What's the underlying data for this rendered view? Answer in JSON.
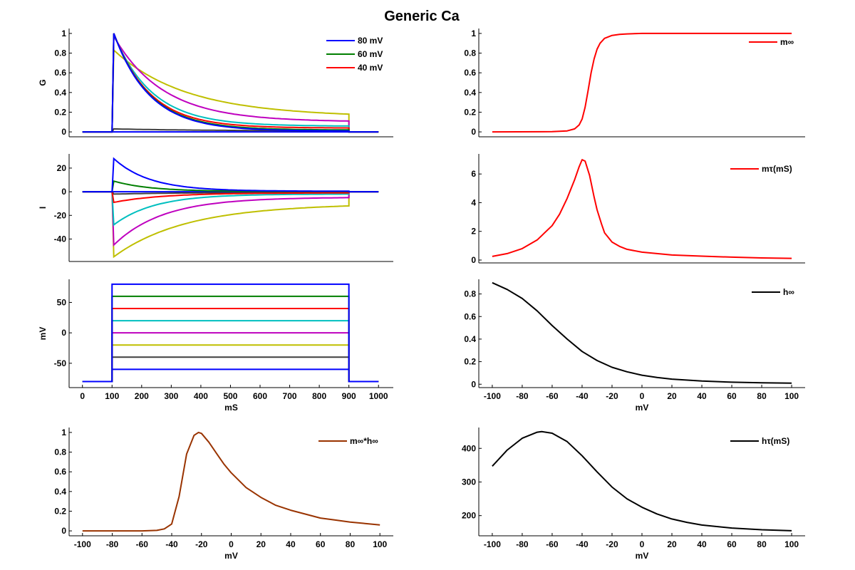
{
  "figure": {
    "title": "Generic Ca"
  },
  "chart_data": [
    {
      "id": "conductance",
      "type": "line",
      "title": "",
      "xlabel": "",
      "ylabel": "G",
      "xlim": [
        -45,
        1050
      ],
      "ylim": [
        -0.05,
        1.05
      ],
      "yticks": [
        0,
        0.2,
        0.4,
        0.6,
        0.8,
        1
      ],
      "ytick_labels": [
        "0",
        "0.2",
        "0.4",
        "0.6",
        "0.8",
        "1"
      ],
      "xticks": [],
      "legend": {
        "position": "top-right",
        "entries": [
          "80 mV",
          "60 mV",
          "40 mV"
        ]
      },
      "series": [
        {
          "name": "80 mV",
          "color": "#0000ff",
          "step_mV": 80,
          "peak": 1.0,
          "end": 0.01,
          "kind": "decay"
        },
        {
          "name": "60 mV",
          "color": "#007f00",
          "step_mV": 60,
          "peak": 1.0,
          "end": 0.02,
          "kind": "decay"
        },
        {
          "name": "40 mV",
          "color": "#ff0000",
          "step_mV": 40,
          "peak": 1.0,
          "end": 0.04,
          "kind": "decay"
        },
        {
          "name": "20 mV",
          "color": "#00bfbf",
          "step_mV": 20,
          "peak": 0.99,
          "end": 0.06,
          "kind": "decay"
        },
        {
          "name": "0 mV",
          "color": "#bf00bf",
          "step_mV": 0,
          "peak": 0.97,
          "end": 0.11,
          "kind": "decay"
        },
        {
          "name": "-20 mV",
          "color": "#bfbf00",
          "step_mV": -20,
          "peak": 0.83,
          "end": 0.18,
          "kind": "decay"
        },
        {
          "name": "-40 mV",
          "color": "#3f3f3f",
          "step_mV": -40,
          "peak": 0.03,
          "end": 0.01,
          "kind": "decay"
        },
        {
          "name": "-60 mV",
          "color": "#0000ff",
          "step_mV": -60,
          "peak": 0.0,
          "end": 0.0,
          "kind": "flat"
        }
      ],
      "step_on_ms": 100,
      "step_off_ms": 900,
      "t_range_ms": [
        0,
        1000
      ]
    },
    {
      "id": "current",
      "type": "line",
      "xlabel": "",
      "ylabel": "I",
      "xlim": [
        -45,
        1050
      ],
      "ylim": [
        -59,
        32
      ],
      "yticks": [
        -40,
        -20,
        0,
        20
      ],
      "ytick_labels": [
        "-40",
        "-20",
        "0",
        "20"
      ],
      "xticks": [],
      "series": [
        {
          "name": "80 mV",
          "color": "#0000ff",
          "peak": 28,
          "end": 0.5
        },
        {
          "name": "60 mV",
          "color": "#007f00",
          "peak": 9,
          "end": 0.3
        },
        {
          "name": "40 mV",
          "color": "#ff0000",
          "peak": -9,
          "end": -1
        },
        {
          "name": "20 mV",
          "color": "#00bfbf",
          "peak": -28,
          "end": -2
        },
        {
          "name": "0 mV",
          "color": "#bf00bf",
          "peak": -45,
          "end": -5
        },
        {
          "name": "-20 mV",
          "color": "#bfbf00",
          "peak": -55,
          "end": -12
        },
        {
          "name": "-40 mV",
          "color": "#3f3f3f",
          "peak": -2,
          "end": -0.5
        },
        {
          "name": "-60 mV",
          "color": "#0000ff",
          "peak": 0,
          "end": 0
        }
      ]
    },
    {
      "id": "voltage-protocol",
      "type": "line",
      "xlabel": "mS",
      "ylabel": "mV",
      "xlim": [
        -45,
        1050
      ],
      "ylim": [
        -90,
        88
      ],
      "yticks": [
        -50,
        0,
        50
      ],
      "ytick_labels": [
        "-50",
        "0",
        "50"
      ],
      "xticks": [
        0,
        100,
        200,
        300,
        400,
        500,
        600,
        700,
        800,
        900,
        1000
      ],
      "xtick_labels": [
        "0",
        "100",
        "200",
        "300",
        "400",
        "500",
        "600",
        "700",
        "800",
        "900",
        "1000"
      ],
      "holding_mV": -80,
      "series": [
        {
          "name": "80 mV",
          "color": "#0000ff",
          "level": 80
        },
        {
          "name": "60 mV",
          "color": "#007f00",
          "level": 60
        },
        {
          "name": "40 mV",
          "color": "#ff0000",
          "level": 40
        },
        {
          "name": "20 mV",
          "color": "#00bfbf",
          "level": 20
        },
        {
          "name": "0 mV",
          "color": "#bf00bf",
          "level": 0
        },
        {
          "name": "-20 mV",
          "color": "#bfbf00",
          "level": -20
        },
        {
          "name": "-40 mV",
          "color": "#3f3f3f",
          "level": -40
        },
        {
          "name": "-60 mV",
          "color": "#0000ff",
          "level": -60
        }
      ]
    },
    {
      "id": "window-current",
      "type": "line",
      "xlabel": "mV",
      "ylabel": "",
      "xlim": [
        -109,
        109
      ],
      "ylim": [
        -0.05,
        1.05
      ],
      "yticks": [
        0,
        0.2,
        0.4,
        0.6,
        0.8,
        1
      ],
      "ytick_labels": [
        "0",
        "0.2",
        "0.4",
        "0.6",
        "0.8",
        "1"
      ],
      "xticks": [
        -100,
        -80,
        -60,
        -40,
        -20,
        0,
        20,
        40,
        60,
        80,
        100
      ],
      "xtick_labels": [
        "-100",
        "-80",
        "-60",
        "-40",
        "-20",
        "0",
        "20",
        "40",
        "60",
        "80",
        "100"
      ],
      "legend": {
        "position": "top-right",
        "entries": [
          "m∞*h∞"
        ]
      },
      "series": [
        {
          "name": "m∞*h∞",
          "color": "#993300",
          "x": [
            -100,
            -60,
            -50,
            -45,
            -40,
            -35,
            -30,
            -25,
            -22,
            -20,
            -15,
            -10,
            -5,
            0,
            10,
            20,
            30,
            40,
            50,
            60,
            70,
            80,
            90,
            100
          ],
          "y": [
            0,
            0,
            0.005,
            0.02,
            0.07,
            0.35,
            0.78,
            0.97,
            1.0,
            0.99,
            0.9,
            0.79,
            0.68,
            0.59,
            0.44,
            0.34,
            0.26,
            0.21,
            0.17,
            0.13,
            0.11,
            0.09,
            0.075,
            0.06
          ]
        }
      ]
    },
    {
      "id": "m-inf",
      "type": "line",
      "xlabel": "",
      "ylabel": "",
      "xlim": [
        -109,
        109
      ],
      "ylim": [
        -0.05,
        1.05
      ],
      "yticks": [
        0,
        0.2,
        0.4,
        0.6,
        0.8,
        1
      ],
      "ytick_labels": [
        "0",
        "0.2",
        "0.4",
        "0.6",
        "0.8",
        "1"
      ],
      "xticks": [],
      "legend": {
        "position": "top-right",
        "entries": [
          "m∞"
        ]
      },
      "series": [
        {
          "name": "m∞",
          "color": "#ff0000",
          "x": [
            -100,
            -60,
            -50,
            -45,
            -42,
            -40,
            -38,
            -36,
            -34,
            -32,
            -30,
            -28,
            -25,
            -20,
            -15,
            -10,
            0,
            20,
            50,
            100
          ],
          "y": [
            0,
            0.002,
            0.01,
            0.03,
            0.07,
            0.13,
            0.25,
            0.42,
            0.6,
            0.74,
            0.84,
            0.9,
            0.95,
            0.98,
            0.99,
            0.995,
            1.0,
            1.0,
            1.0,
            1.0
          ]
        }
      ]
    },
    {
      "id": "m-tau",
      "type": "line",
      "xlabel": "",
      "ylabel": "",
      "xlim": [
        -109,
        109
      ],
      "ylim": [
        -0.2,
        7.4
      ],
      "yticks": [
        0,
        2,
        4,
        6
      ],
      "ytick_labels": [
        "0",
        "2",
        "4",
        "6"
      ],
      "xticks": [],
      "legend": {
        "position": "top-right",
        "entries": [
          "mτ(mS)"
        ]
      },
      "series": [
        {
          "name": "mτ(mS)",
          "color": "#ff0000",
          "x": [
            -100,
            -90,
            -80,
            -70,
            -60,
            -55,
            -50,
            -45,
            -42,
            -40,
            -38,
            -35,
            -32,
            -30,
            -27,
            -25,
            -20,
            -15,
            -10,
            0,
            20,
            40,
            60,
            80,
            100
          ],
          "y": [
            0.25,
            0.45,
            0.8,
            1.4,
            2.4,
            3.2,
            4.3,
            5.6,
            6.5,
            7.0,
            6.9,
            5.9,
            4.4,
            3.5,
            2.5,
            1.9,
            1.25,
            0.95,
            0.75,
            0.55,
            0.35,
            0.27,
            0.2,
            0.15,
            0.12
          ]
        }
      ]
    },
    {
      "id": "h-inf",
      "type": "line",
      "xlabel": "mV",
      "ylabel": "",
      "xlim": [
        -109,
        109
      ],
      "ylim": [
        -0.03,
        0.93
      ],
      "yticks": [
        0,
        0.2,
        0.4,
        0.6,
        0.8
      ],
      "ytick_labels": [
        "0",
        "0.2",
        "0.4",
        "0.6",
        "0.8"
      ],
      "xticks": [
        -100,
        -80,
        -60,
        -40,
        -20,
        0,
        20,
        40,
        60,
        80,
        100
      ],
      "xtick_labels": [
        "-100",
        "-80",
        "-60",
        "-40",
        "-20",
        "0",
        "20",
        "40",
        "60",
        "80",
        "100"
      ],
      "legend": {
        "position": "top-right",
        "entries": [
          "h∞"
        ]
      },
      "series": [
        {
          "name": "h∞",
          "color": "#000000",
          "x": [
            -100,
            -90,
            -80,
            -70,
            -60,
            -50,
            -40,
            -30,
            -20,
            -10,
            0,
            10,
            20,
            40,
            60,
            80,
            100
          ],
          "y": [
            0.9,
            0.84,
            0.76,
            0.65,
            0.52,
            0.4,
            0.29,
            0.21,
            0.15,
            0.11,
            0.08,
            0.06,
            0.045,
            0.028,
            0.018,
            0.013,
            0.01
          ]
        }
      ]
    },
    {
      "id": "h-tau",
      "type": "line",
      "xlabel": "mV",
      "ylabel": "",
      "xlim": [
        -109,
        109
      ],
      "ylim": [
        140,
        462
      ],
      "yticks": [
        200,
        300,
        400
      ],
      "ytick_labels": [
        "200",
        "300",
        "400"
      ],
      "xticks": [
        -100,
        -80,
        -60,
        -40,
        -20,
        0,
        20,
        40,
        60,
        80,
        100
      ],
      "xtick_labels": [
        "-100",
        "-80",
        "-60",
        "-40",
        "-20",
        "0",
        "20",
        "40",
        "60",
        "80",
        "100"
      ],
      "legend": {
        "position": "top-right",
        "entries": [
          "hτ(mS)"
        ]
      },
      "series": [
        {
          "name": "hτ(mS)",
          "color": "#000000",
          "x": [
            -100,
            -90,
            -80,
            -70,
            -67,
            -60,
            -50,
            -40,
            -30,
            -20,
            -10,
            0,
            10,
            20,
            30,
            40,
            60,
            80,
            100
          ],
          "y": [
            347,
            395,
            430,
            448,
            450,
            445,
            420,
            378,
            330,
            285,
            250,
            225,
            205,
            190,
            180,
            172,
            163,
            158,
            155
          ]
        }
      ]
    }
  ]
}
